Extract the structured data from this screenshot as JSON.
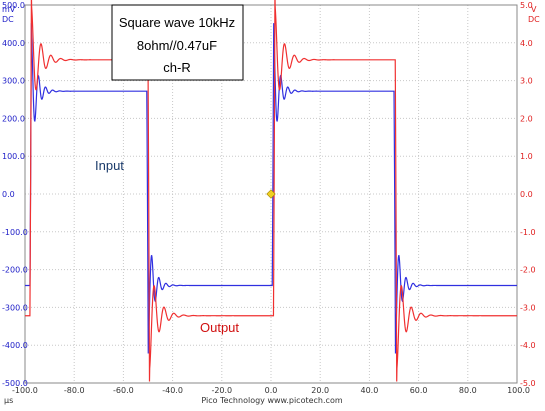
{
  "chart_data": {
    "type": "line",
    "title_lines": [
      "Square wave 10kHz",
      "8ohm//0.47uF",
      "ch-R"
    ],
    "x_unit": "µs",
    "xlim": [
      -100,
      100
    ],
    "x_ticks": [
      "-100.0",
      "-80.0",
      "-60.0",
      "-40.0",
      "-20.0",
      "0.0",
      "20.0",
      "40.0",
      "60.0",
      "80.0",
      "100.0"
    ],
    "left_axis": {
      "units": [
        "mV",
        "DC"
      ],
      "ylim": [
        -500,
        500
      ],
      "ticks": [
        "500.0",
        "400.0",
        "300.0",
        "200.0",
        "100.0",
        "0.0",
        "-100.0",
        "-200.0",
        "-300.0",
        "-400.0",
        "-500.0"
      ]
    },
    "right_axis": {
      "units": [
        "V",
        "DC"
      ],
      "ylim": [
        -5,
        5
      ],
      "ticks": [
        "5.0",
        "4.0",
        "3.0",
        "2.0",
        "1.0",
        "0.0",
        "-1.0",
        "-2.0",
        "-3.0",
        "-4.0",
        "-5.0"
      ]
    },
    "grid": true,
    "annotations": [
      "Input",
      "Output"
    ],
    "footer": "Pico Technology  www.picotech.com",
    "series": [
      {
        "name": "Input",
        "color": "#3030e0",
        "axis": "left",
        "high": 272,
        "low": -242,
        "edges": [
          -98,
          -50.5,
          0.5,
          50
        ],
        "ringing": {
          "peak": 150,
          "decay_us": 2.2,
          "period_us": 2.9
        }
      },
      {
        "name": "Output",
        "color": "#f03030",
        "axis": "right",
        "high": 3.55,
        "low": -3.22,
        "edges": [
          -98,
          -50,
          1,
          50.5
        ],
        "ringing": {
          "peak": 1.45,
          "decay_us": 3.2,
          "period_us": 4.0
        }
      }
    ],
    "trigger_marker": {
      "x": 0,
      "y": 0,
      "color": "#f0d020"
    }
  }
}
